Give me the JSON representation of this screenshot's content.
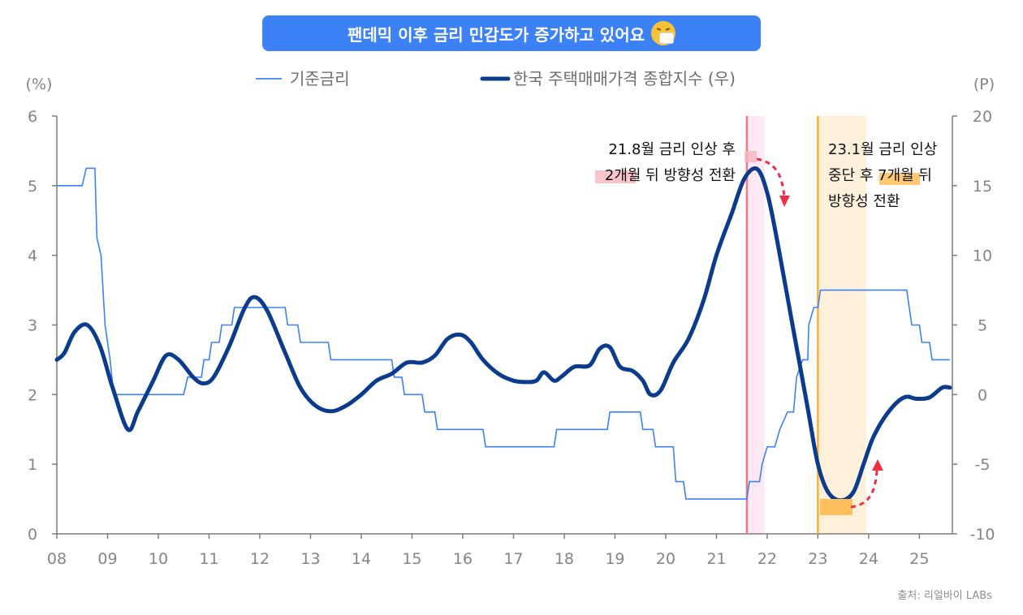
{
  "title": "팬데믹 이후 금리 민감도가 증가하고 있어요",
  "source": "출처: 리얼바이 LABs",
  "colors": {
    "rate_line": "#3c82f6",
    "index_line": "#0b3b8c",
    "pink_line": "#f07886",
    "pink_band": "#fde8f3",
    "orange_line": "#f5b13c",
    "orange_band": "#fff0dc",
    "arrow": "#ee2e44",
    "axis": "#7d7d7d"
  },
  "chart_data": {
    "type": "line",
    "x_label_unit": "year",
    "x_ticks": [
      "08",
      "09",
      "10",
      "11",
      "12",
      "13",
      "14",
      "15",
      "16",
      "17",
      "18",
      "19",
      "20",
      "21",
      "22",
      "23",
      "24",
      "25"
    ],
    "left_axis": {
      "label": "(%)",
      "range": [
        0,
        6
      ],
      "ticks": [
        "0",
        "1",
        "2",
        "3",
        "4",
        "5",
        "6"
      ]
    },
    "right_axis": {
      "label": "(P)",
      "range": [
        -10,
        20
      ],
      "ticks": [
        "-10",
        "-5",
        "0",
        "5",
        "10",
        "15",
        "20"
      ]
    },
    "legend": [
      "기준금리",
      "한국 주택매매가격 종합지수 (우)"
    ],
    "series": [
      {
        "name": "기준금리",
        "axis": "left",
        "points": [
          [
            2008.0,
            5.0
          ],
          [
            2008.5,
            5.0
          ],
          [
            2008.58,
            5.25
          ],
          [
            2008.75,
            5.25
          ],
          [
            2008.79,
            4.25
          ],
          [
            2008.87,
            4.0
          ],
          [
            2008.95,
            3.0
          ],
          [
            2009.05,
            2.5
          ],
          [
            2009.12,
            2.0
          ],
          [
            2010.5,
            2.0
          ],
          [
            2010.58,
            2.25
          ],
          [
            2010.85,
            2.25
          ],
          [
            2010.9,
            2.5
          ],
          [
            2011.0,
            2.5
          ],
          [
            2011.05,
            2.75
          ],
          [
            2011.2,
            2.75
          ],
          [
            2011.25,
            3.0
          ],
          [
            2011.45,
            3.0
          ],
          [
            2011.5,
            3.25
          ],
          [
            2012.5,
            3.25
          ],
          [
            2012.55,
            3.0
          ],
          [
            2012.75,
            3.0
          ],
          [
            2012.8,
            2.75
          ],
          [
            2013.35,
            2.75
          ],
          [
            2013.4,
            2.5
          ],
          [
            2014.6,
            2.5
          ],
          [
            2014.65,
            2.25
          ],
          [
            2014.8,
            2.25
          ],
          [
            2014.85,
            2.0
          ],
          [
            2015.2,
            2.0
          ],
          [
            2015.25,
            1.75
          ],
          [
            2015.45,
            1.75
          ],
          [
            2015.5,
            1.5
          ],
          [
            2016.4,
            1.5
          ],
          [
            2016.45,
            1.25
          ],
          [
            2017.8,
            1.25
          ],
          [
            2017.85,
            1.5
          ],
          [
            2018.85,
            1.5
          ],
          [
            2018.9,
            1.75
          ],
          [
            2019.5,
            1.75
          ],
          [
            2019.55,
            1.5
          ],
          [
            2019.75,
            1.5
          ],
          [
            2019.8,
            1.25
          ],
          [
            2020.15,
            1.25
          ],
          [
            2020.2,
            0.75
          ],
          [
            2020.35,
            0.75
          ],
          [
            2020.4,
            0.5
          ],
          [
            2021.6,
            0.5
          ],
          [
            2021.65,
            0.75
          ],
          [
            2021.85,
            0.75
          ],
          [
            2021.9,
            1.0
          ],
          [
            2022.0,
            1.25
          ],
          [
            2022.15,
            1.25
          ],
          [
            2022.25,
            1.5
          ],
          [
            2022.4,
            1.75
          ],
          [
            2022.52,
            1.75
          ],
          [
            2022.58,
            2.25
          ],
          [
            2022.7,
            2.5
          ],
          [
            2022.8,
            2.5
          ],
          [
            2022.82,
            3.0
          ],
          [
            2022.92,
            3.25
          ],
          [
            2023.0,
            3.25
          ],
          [
            2023.05,
            3.5
          ],
          [
            2024.75,
            3.5
          ],
          [
            2024.8,
            3.25
          ],
          [
            2024.85,
            3.0
          ],
          [
            2025.0,
            3.0
          ],
          [
            2025.05,
            2.75
          ],
          [
            2025.2,
            2.75
          ],
          [
            2025.25,
            2.5
          ],
          [
            2025.6,
            2.5
          ]
        ]
      },
      {
        "name": "한국 주택매매가격 종합지수 (우)",
        "axis": "right",
        "points": [
          [
            2008.0,
            2.5
          ],
          [
            2008.15,
            3.0
          ],
          [
            2008.35,
            4.5
          ],
          [
            2008.6,
            5.0
          ],
          [
            2008.85,
            3.5
          ],
          [
            2009.1,
            0.5
          ],
          [
            2009.4,
            -2.5
          ],
          [
            2009.6,
            -1.2
          ],
          [
            2009.9,
            1.0
          ],
          [
            2010.15,
            2.8
          ],
          [
            2010.4,
            2.5
          ],
          [
            2010.7,
            1.2
          ],
          [
            2010.9,
            0.8
          ],
          [
            2011.1,
            1.3
          ],
          [
            2011.4,
            3.5
          ],
          [
            2011.7,
            6.2
          ],
          [
            2011.9,
            7.0
          ],
          [
            2012.15,
            6.0
          ],
          [
            2012.5,
            3.0
          ],
          [
            2012.8,
            0.5
          ],
          [
            2013.1,
            -0.8
          ],
          [
            2013.4,
            -1.2
          ],
          [
            2013.7,
            -0.8
          ],
          [
            2014.0,
            0.0
          ],
          [
            2014.3,
            1.0
          ],
          [
            2014.6,
            1.5
          ],
          [
            2014.9,
            2.3
          ],
          [
            2015.2,
            2.3
          ],
          [
            2015.45,
            2.8
          ],
          [
            2015.7,
            4.0
          ],
          [
            2015.95,
            4.3
          ],
          [
            2016.15,
            3.8
          ],
          [
            2016.4,
            2.5
          ],
          [
            2016.7,
            1.5
          ],
          [
            2017.0,
            1.0
          ],
          [
            2017.25,
            0.9
          ],
          [
            2017.45,
            1.0
          ],
          [
            2017.6,
            1.6
          ],
          [
            2017.8,
            1.0
          ],
          [
            2017.95,
            1.3
          ],
          [
            2018.2,
            2.0
          ],
          [
            2018.5,
            2.1
          ],
          [
            2018.7,
            3.3
          ],
          [
            2018.9,
            3.4
          ],
          [
            2019.1,
            2.0
          ],
          [
            2019.35,
            1.7
          ],
          [
            2019.55,
            1.0
          ],
          [
            2019.7,
            0.0
          ],
          [
            2019.9,
            0.3
          ],
          [
            2020.15,
            2.3
          ],
          [
            2020.45,
            4.0
          ],
          [
            2020.75,
            6.8
          ],
          [
            2021.0,
            10.0
          ],
          [
            2021.3,
            13.0
          ],
          [
            2021.55,
            15.5
          ],
          [
            2021.8,
            16.2
          ],
          [
            2022.0,
            14.5
          ],
          [
            2022.2,
            11.0
          ],
          [
            2022.5,
            5.0
          ],
          [
            2022.8,
            -1.0
          ],
          [
            2023.0,
            -5.0
          ],
          [
            2023.2,
            -7.0
          ],
          [
            2023.45,
            -7.6
          ],
          [
            2023.7,
            -7.0
          ],
          [
            2023.9,
            -5.0
          ],
          [
            2024.1,
            -3.0
          ],
          [
            2024.4,
            -1.2
          ],
          [
            2024.7,
            -0.2
          ],
          [
            2024.95,
            -0.3
          ],
          [
            2025.2,
            -0.2
          ],
          [
            2025.45,
            0.5
          ],
          [
            2025.6,
            0.5
          ]
        ]
      }
    ],
    "annotations": [
      {
        "lines": [
          "21.8월 금리 인상 후",
          "2개월 뒤 방향성 전환"
        ],
        "marker_year": 2021.6,
        "band": [
          2021.6,
          2021.95
        ]
      },
      {
        "lines": [
          "23.1월 금리 인상",
          "중단 후 7개월 뒤",
          "방향성 전환"
        ],
        "marker_year": 2023.0,
        "band": [
          2023.0,
          2023.95
        ]
      }
    ]
  }
}
